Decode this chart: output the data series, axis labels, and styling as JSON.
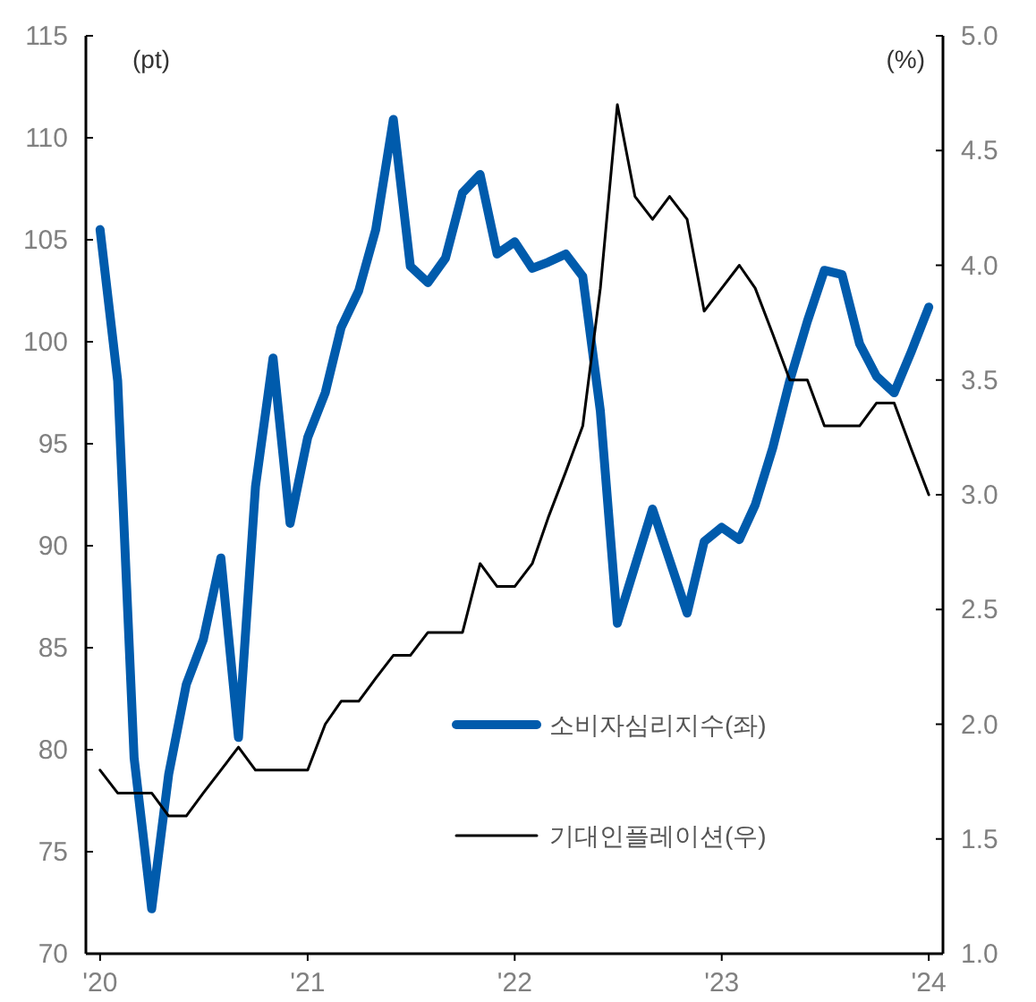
{
  "chart_data": {
    "type": "line",
    "x": [
      "2020-01",
      "2020-02",
      "2020-03",
      "2020-04",
      "2020-05",
      "2020-06",
      "2020-07",
      "2020-08",
      "2020-09",
      "2020-10",
      "2020-11",
      "2020-12",
      "2021-01",
      "2021-02",
      "2021-03",
      "2021-04",
      "2021-05",
      "2021-06",
      "2021-07",
      "2021-08",
      "2021-09",
      "2021-10",
      "2021-11",
      "2021-12",
      "2022-01",
      "2022-02",
      "2022-03",
      "2022-04",
      "2022-05",
      "2022-06",
      "2022-07",
      "2022-08",
      "2022-09",
      "2022-10",
      "2022-11",
      "2022-12",
      "2023-01",
      "2023-02",
      "2023-03",
      "2023-04",
      "2023-05",
      "2023-06",
      "2023-07",
      "2023-08",
      "2023-09",
      "2023-10",
      "2023-11",
      "2023-12",
      "2024-01"
    ],
    "series": [
      {
        "name": "소비자심리지수(좌)",
        "color": "#005bac",
        "axis": "y",
        "values": [
          105.5,
          98.1,
          79.6,
          72.2,
          78.8,
          83.2,
          85.4,
          89.4,
          80.6,
          92.9,
          99.2,
          91.1,
          95.3,
          97.5,
          100.7,
          102.5,
          105.5,
          110.9,
          103.7,
          102.9,
          104.1,
          107.3,
          108.2,
          104.3,
          104.9,
          103.6,
          103.9,
          104.3,
          103.2,
          96.6,
          86.2,
          89.0,
          91.8,
          89.3,
          86.7,
          90.2,
          90.9,
          90.3,
          92.0,
          94.8,
          98.1,
          101.0,
          103.5,
          103.3,
          99.9,
          98.3,
          97.5,
          99.5,
          101.7
        ]
      },
      {
        "name": "기대인플레이션(우)",
        "color": "#000000",
        "axis": "y2",
        "values": [
          1.8,
          1.7,
          1.7,
          1.7,
          1.6,
          1.6,
          1.7,
          1.8,
          1.9,
          1.8,
          1.8,
          1.8,
          1.8,
          2.0,
          2.1,
          2.1,
          2.2,
          2.3,
          2.3,
          2.4,
          2.4,
          2.4,
          2.7,
          2.6,
          2.6,
          2.7,
          2.9,
          3.1,
          3.3,
          3.9,
          4.7,
          4.3,
          4.2,
          4.3,
          4.2,
          3.8,
          3.9,
          4.0,
          3.9,
          3.7,
          3.5,
          3.5,
          3.3,
          3.3,
          3.3,
          3.4,
          3.4,
          3.2,
          3.0
        ]
      }
    ],
    "xlim": [
      "2019-12-07",
      "2024-01-26"
    ],
    "xticks": [
      {
        "value": "2020-01",
        "label": "'20"
      },
      {
        "value": "2021-01",
        "label": "'21"
      },
      {
        "value": "2022-01",
        "label": "'22"
      },
      {
        "value": "2023-01",
        "label": "'23"
      },
      {
        "value": "2024-01",
        "label": "'24"
      }
    ],
    "ylim": [
      70,
      115
    ],
    "yticks": [
      70,
      75,
      80,
      85,
      90,
      95,
      100,
      105,
      110,
      115
    ],
    "y2lim": [
      1.0,
      5.0
    ],
    "y2ticks": [
      {
        "value": 1,
        "label": "1.0"
      },
      {
        "value": 1.5,
        "label": "1.5"
      },
      {
        "value": 2,
        "label": "2.0"
      },
      {
        "value": 2.5,
        "label": "2.5"
      },
      {
        "value": 3,
        "label": "3.0"
      },
      {
        "value": 3.5,
        "label": "3.5"
      },
      {
        "value": 4,
        "label": "4.0"
      },
      {
        "value": 4.5,
        "label": "4.5"
      },
      {
        "value": 5,
        "label": "5.0"
      }
    ],
    "ylabel": "(pt)",
    "y2label": "(%)",
    "legend": "bottom right",
    "grid": false
  }
}
